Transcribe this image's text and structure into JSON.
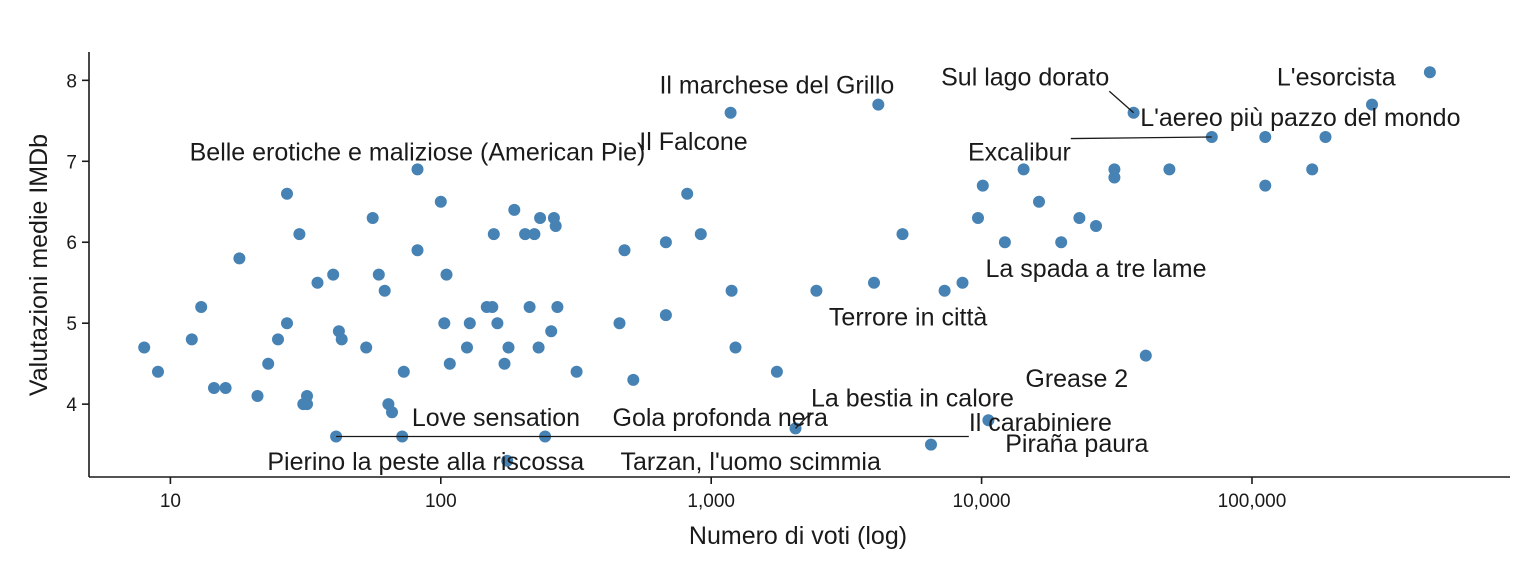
{
  "chart_data": {
    "type": "scatter",
    "title": "",
    "xlabel": "Numero di voti (log)",
    "ylabel": "Valutazioni medie IMDb",
    "x_scale": "log",
    "xlim": [
      5,
      900000
    ],
    "ylim": [
      3.1,
      8.35
    ],
    "x_ticks": [
      {
        "value": 10,
        "label": "10"
      },
      {
        "value": 100,
        "label": "100"
      },
      {
        "value": 1000,
        "label": "1,000"
      },
      {
        "value": 10000,
        "label": "10,000"
      },
      {
        "value": 100000,
        "label": "100,000"
      }
    ],
    "y_ticks": [
      {
        "value": 4,
        "label": "4"
      },
      {
        "value": 5,
        "label": "5"
      },
      {
        "value": 6,
        "label": "6"
      },
      {
        "value": 7,
        "label": "7"
      },
      {
        "value": 8,
        "label": "8"
      }
    ],
    "grid": false,
    "point_color": "#4682B4",
    "points": [
      {
        "x": 8,
        "y": 4.7
      },
      {
        "x": 9,
        "y": 4.4
      },
      {
        "x": 12,
        "y": 4.8
      },
      {
        "x": 13,
        "y": 5.2
      },
      {
        "x": 14.5,
        "y": 4.2
      },
      {
        "x": 16,
        "y": 4.2
      },
      {
        "x": 18,
        "y": 5.8
      },
      {
        "x": 21,
        "y": 4.1
      },
      {
        "x": 23,
        "y": 4.5
      },
      {
        "x": 25,
        "y": 4.8
      },
      {
        "x": 27,
        "y": 5.0
      },
      {
        "x": 27,
        "y": 6.6
      },
      {
        "x": 30,
        "y": 6.1
      },
      {
        "x": 31,
        "y": 4.0
      },
      {
        "x": 32,
        "y": 4.1
      },
      {
        "x": 32,
        "y": 4.0
      },
      {
        "x": 35,
        "y": 5.5
      },
      {
        "x": 40,
        "y": 5.6
      },
      {
        "x": 41,
        "y": 3.6
      },
      {
        "x": 42,
        "y": 4.9
      },
      {
        "x": 43,
        "y": 4.8
      },
      {
        "x": 53,
        "y": 4.7
      },
      {
        "x": 56,
        "y": 6.3
      },
      {
        "x": 59,
        "y": 5.6
      },
      {
        "x": 62,
        "y": 5.4
      },
      {
        "x": 64,
        "y": 4.0
      },
      {
        "x": 66,
        "y": 3.9
      },
      {
        "x": 72,
        "y": 3.6
      },
      {
        "x": 73,
        "y": 4.4
      },
      {
        "x": 82,
        "y": 6.9
      },
      {
        "x": 82,
        "y": 5.9
      },
      {
        "x": 100,
        "y": 6.5
      },
      {
        "x": 103,
        "y": 5.0
      },
      {
        "x": 105,
        "y": 5.6
      },
      {
        "x": 108,
        "y": 4.5
      },
      {
        "x": 125,
        "y": 4.7
      },
      {
        "x": 128,
        "y": 5.0
      },
      {
        "x": 148,
        "y": 5.2
      },
      {
        "x": 155,
        "y": 5.2
      },
      {
        "x": 157,
        "y": 6.1
      },
      {
        "x": 162,
        "y": 5.0
      },
      {
        "x": 172,
        "y": 4.5
      },
      {
        "x": 176,
        "y": 3.3
      },
      {
        "x": 178,
        "y": 4.7
      },
      {
        "x": 187,
        "y": 6.4
      },
      {
        "x": 205,
        "y": 6.1
      },
      {
        "x": 213,
        "y": 5.2
      },
      {
        "x": 222,
        "y": 6.1
      },
      {
        "x": 230,
        "y": 4.7
      },
      {
        "x": 233,
        "y": 6.3
      },
      {
        "x": 243,
        "y": 3.6
      },
      {
        "x": 256,
        "y": 4.9
      },
      {
        "x": 262,
        "y": 6.3
      },
      {
        "x": 266,
        "y": 6.2
      },
      {
        "x": 270,
        "y": 5.2
      },
      {
        "x": 318,
        "y": 4.4
      },
      {
        "x": 458,
        "y": 5.0
      },
      {
        "x": 478,
        "y": 5.9
      },
      {
        "x": 515,
        "y": 4.3
      },
      {
        "x": 680,
        "y": 6.0
      },
      {
        "x": 680,
        "y": 5.1
      },
      {
        "x": 815,
        "y": 6.6
      },
      {
        "x": 915,
        "y": 6.1
      },
      {
        "x": 1180,
        "y": 7.6
      },
      {
        "x": 1190,
        "y": 5.4
      },
      {
        "x": 1230,
        "y": 4.7
      },
      {
        "x": 1750,
        "y": 4.4
      },
      {
        "x": 2050,
        "y": 3.7
      },
      {
        "x": 2450,
        "y": 5.4
      },
      {
        "x": 4000,
        "y": 5.5
      },
      {
        "x": 4150,
        "y": 7.7
      },
      {
        "x": 5100,
        "y": 6.1
      },
      {
        "x": 6500,
        "y": 3.5
      },
      {
        "x": 7300,
        "y": 5.4
      },
      {
        "x": 8500,
        "y": 5.5
      },
      {
        "x": 9700,
        "y": 6.3
      },
      {
        "x": 10100,
        "y": 6.7
      },
      {
        "x": 10600,
        "y": 3.8
      },
      {
        "x": 12200,
        "y": 6.0
      },
      {
        "x": 14300,
        "y": 6.9
      },
      {
        "x": 16300,
        "y": 6.5
      },
      {
        "x": 19700,
        "y": 6.0
      },
      {
        "x": 23000,
        "y": 6.3
      },
      {
        "x": 26500,
        "y": 6.2
      },
      {
        "x": 31000,
        "y": 6.9
      },
      {
        "x": 31000,
        "y": 6.8
      },
      {
        "x": 36500,
        "y": 7.6
      },
      {
        "x": 40500,
        "y": 4.6
      },
      {
        "x": 49500,
        "y": 6.9
      },
      {
        "x": 71000,
        "y": 7.3
      },
      {
        "x": 112000,
        "y": 7.3
      },
      {
        "x": 112000,
        "y": 6.7
      },
      {
        "x": 167000,
        "y": 6.9
      },
      {
        "x": 187000,
        "y": 7.3
      },
      {
        "x": 278000,
        "y": 7.7
      },
      {
        "x": 455000,
        "y": 8.1
      }
    ],
    "annotations": [
      {
        "text": "L'esorcista",
        "x": 455000,
        "y": 8.1,
        "tx": 205000,
        "ty": 8.05,
        "leader": false
      },
      {
        "text": "Sul lago dorato",
        "x": 36500,
        "y": 7.6,
        "tx": 14500,
        "ty": 8.05,
        "leader": true
      },
      {
        "text": "Il marchese del Grillo",
        "x": 4150,
        "y": 7.7,
        "tx": 1750,
        "ty": 7.95,
        "leader": false
      },
      {
        "text": "L'aereo più pazzo del mondo",
        "x": 71000,
        "y": 7.3,
        "tx": 151000,
        "ty": 7.55,
        "leader": false
      },
      {
        "text": "Il Falcone",
        "x": 1180,
        "y": 7.6,
        "tx": 860,
        "ty": 7.25,
        "leader": false
      },
      {
        "text": "Belle erotiche e maliziose (American Pie)",
        "x": 82,
        "y": 6.9,
        "tx": 82,
        "ty": 7.12,
        "leader": false
      },
      {
        "text": "Excalibur",
        "x": 71000,
        "y": 7.3,
        "tx": 13800,
        "ty": 7.12,
        "leader": true
      },
      {
        "text": "La spada a tre lame",
        "x": 8500,
        "y": 5.5,
        "tx": 26500,
        "ty": 5.68,
        "leader": false
      },
      {
        "text": "Terrore in città",
        "x": 7300,
        "y": 5.4,
        "tx": 5350,
        "ty": 5.08,
        "leader": false
      },
      {
        "text": "Grease 2",
        "x": 40500,
        "y": 4.6,
        "tx": 22500,
        "ty": 4.32,
        "leader": false
      },
      {
        "text": "La bestia in calore",
        "x": 2050,
        "y": 3.7,
        "tx": 5550,
        "ty": 4.08,
        "leader": true
      },
      {
        "text": "Love sensation",
        "x": 66,
        "y": 3.9,
        "tx": 160,
        "ty": 3.84,
        "leader": false
      },
      {
        "text": "Gola profonda nera",
        "x": 243,
        "y": 3.6,
        "tx": 1080,
        "ty": 3.84,
        "leader": false
      },
      {
        "text": "Il carabiniere",
        "x": 41,
        "y": 3.6,
        "tx": 16500,
        "ty": 3.78,
        "leader": true
      },
      {
        "text": "Piraña paura",
        "x": 10600,
        "y": 3.8,
        "tx": 22500,
        "ty": 3.52,
        "leader": false
      },
      {
        "text": "Pierino la peste alla riscossa",
        "x": 176,
        "y": 3.3,
        "tx": 88,
        "ty": 3.3,
        "leader": false
      },
      {
        "text": "Tarzan, l'uomo scimmia",
        "x": 6500,
        "y": 3.5,
        "tx": 1400,
        "ty": 3.3,
        "leader": false
      }
    ]
  }
}
